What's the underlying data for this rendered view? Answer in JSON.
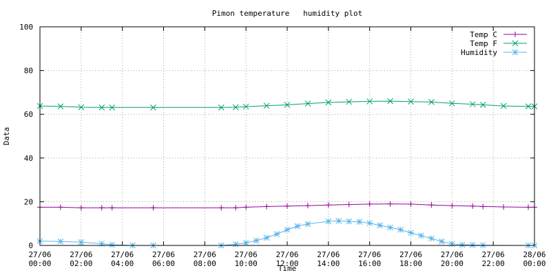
{
  "chart_data": {
    "type": "line",
    "title": "Pimon temperature   humidity plot",
    "xlabel": "Time",
    "ylabel": "Data",
    "ylim": [
      0,
      100
    ],
    "yticks": [
      0,
      20,
      40,
      60,
      80,
      100
    ],
    "xlim": [
      "27/06 00:00",
      "28/06 00:00"
    ],
    "x_unit": "hours since 27/06 00:00",
    "xticks": [
      {
        "hour": 0,
        "date": "27/06",
        "time": "00:00"
      },
      {
        "hour": 2,
        "date": "27/06",
        "time": "02:00"
      },
      {
        "hour": 4,
        "date": "27/06",
        "time": "04:00"
      },
      {
        "hour": 6,
        "date": "27/06",
        "time": "06:00"
      },
      {
        "hour": 8,
        "date": "27/06",
        "time": "08:00"
      },
      {
        "hour": 10,
        "date": "27/06",
        "time": "10:00"
      },
      {
        "hour": 12,
        "date": "27/06",
        "time": "12:00"
      },
      {
        "hour": 14,
        "date": "27/06",
        "time": "14:00"
      },
      {
        "hour": 16,
        "date": "27/06",
        "time": "16:00"
      },
      {
        "hour": 18,
        "date": "27/06",
        "time": "18:00"
      },
      {
        "hour": 20,
        "date": "27/06",
        "time": "20:00"
      },
      {
        "hour": 22,
        "date": "27/06",
        "time": "22:00"
      },
      {
        "hour": 24,
        "date": "28/06",
        "time": "00:00"
      }
    ],
    "grid": true,
    "legend_position": "top-right",
    "series": [
      {
        "name": "Temp C",
        "color": "#94009a",
        "marker": "plus",
        "x": [
          0,
          1,
          2,
          3,
          3.5,
          5.5,
          8.8,
          9.5,
          10,
          11,
          12,
          13,
          14,
          15,
          16,
          17,
          18,
          19,
          20,
          21,
          21.5,
          22.5,
          23.7,
          24
        ],
        "y": [
          17.5,
          17.5,
          17.2,
          17.2,
          17.2,
          17.2,
          17.2,
          17.2,
          17.5,
          17.8,
          18,
          18.2,
          18.5,
          18.7,
          18.9,
          19,
          18.9,
          18.5,
          18.2,
          18,
          17.8,
          17.6,
          17.5,
          17.5
        ]
      },
      {
        "name": "Temp F",
        "color": "#009e73",
        "marker": "cross",
        "x": [
          0,
          1,
          2,
          3,
          3.5,
          5.5,
          8.8,
          9.5,
          10,
          11,
          12,
          13,
          14,
          15,
          16,
          17,
          18,
          19,
          20,
          21,
          21.5,
          22.5,
          23.7,
          24
        ],
        "y": [
          63.8,
          63.6,
          63.2,
          63.1,
          63.1,
          63.1,
          63.1,
          63.2,
          63.5,
          63.9,
          64.3,
          64.9,
          65.4,
          65.7,
          65.9,
          66,
          65.8,
          65.6,
          65,
          64.6,
          64.3,
          63.8,
          63.6,
          63.6
        ]
      },
      {
        "name": "Humidity",
        "color": "#56b4e9",
        "marker": "star",
        "x": [
          0,
          1,
          2,
          3,
          3.5,
          4.5,
          5.5,
          8.8,
          9.5,
          10,
          10.5,
          11,
          11.5,
          12,
          12.5,
          13,
          14,
          14.5,
          15,
          15.5,
          16,
          16.5,
          17,
          17.5,
          18,
          18.5,
          19,
          19.5,
          20,
          20.5,
          21,
          21.5,
          23.7,
          24
        ],
        "y": [
          2,
          1.8,
          1.5,
          0.8,
          0.3,
          0,
          0,
          0,
          0.5,
          1.2,
          2.2,
          3.5,
          5.2,
          7.2,
          8.8,
          9.8,
          11,
          11.2,
          11,
          10.8,
          10.2,
          9.2,
          8.2,
          7.2,
          5.8,
          4.5,
          3.2,
          1.8,
          0.7,
          0.3,
          0.2,
          0.1,
          0,
          0
        ]
      }
    ]
  }
}
